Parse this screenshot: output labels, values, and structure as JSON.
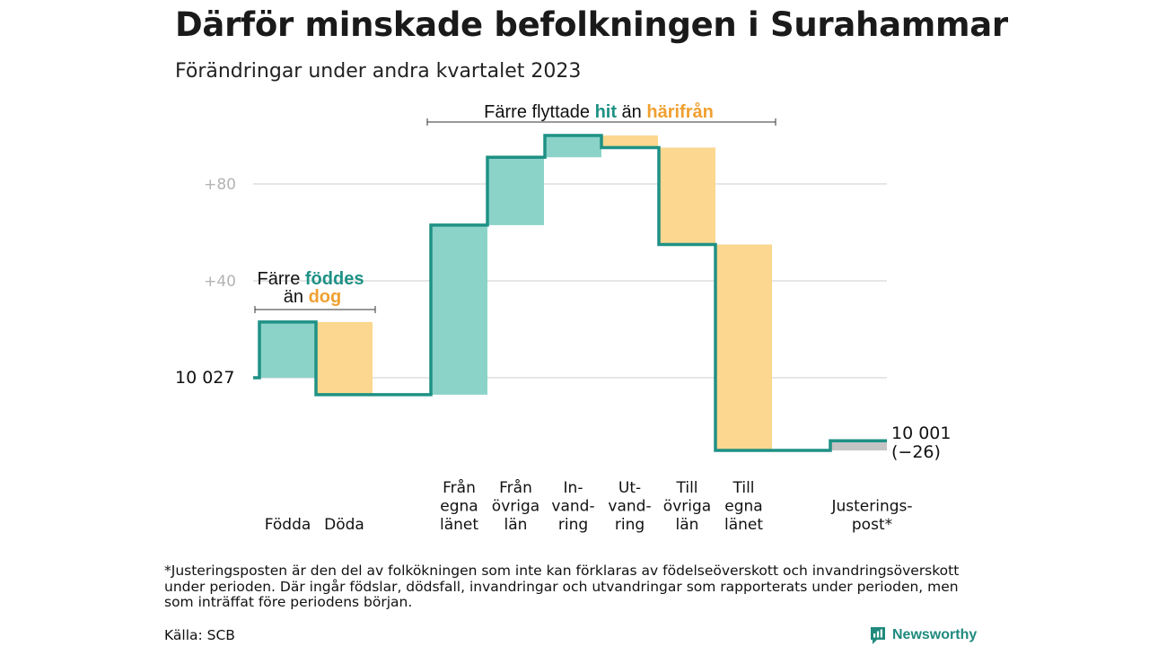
{
  "title": "Därför minskade befolkningen i Surahammar",
  "subtitle": "Förändringar under andra kvartalet 2023",
  "colors": {
    "inflow": "#8bd3c9",
    "outflow": "#fbd78f",
    "adjustment": "#c4c4c4",
    "line": "#1f9185",
    "grid": "#dddddd",
    "hit": "#1f9185",
    "harifran": "#f0a030"
  },
  "chart_data": {
    "type": "waterfall",
    "start_value": 10027,
    "start_label": "10 027",
    "end_label": "10 001",
    "end_change_label": "(−26)",
    "y_tick_labels": [
      "+80",
      "+40"
    ],
    "y_ticks": [
      80,
      40,
      0
    ],
    "y_unit": "change vs start",
    "grid": true,
    "categories": [
      {
        "label": [
          "Födda"
        ],
        "value": 23,
        "kind": "inflow"
      },
      {
        "label": [
          "Döda"
        ],
        "value": -30,
        "kind": "outflow"
      },
      {
        "label": [
          "Från",
          "egna",
          "länet"
        ],
        "value": 70,
        "kind": "inflow"
      },
      {
        "label": [
          "Från",
          "övriga",
          "län"
        ],
        "value": 28,
        "kind": "inflow"
      },
      {
        "label": [
          "In-",
          "vand-",
          "ring"
        ],
        "value": 9,
        "kind": "inflow"
      },
      {
        "label": [
          "Ut-",
          "vand-",
          "ring"
        ],
        "value": -5,
        "kind": "outflow"
      },
      {
        "label": [
          "Till",
          "övriga",
          "län"
        ],
        "value": -40,
        "kind": "outflow"
      },
      {
        "label": [
          "Till",
          "egna",
          "länet"
        ],
        "value": -85,
        "kind": "outflow"
      },
      {
        "label": [
          "Justerings-",
          "post*"
        ],
        "value": 4,
        "kind": "adjustment"
      }
    ],
    "annotations": [
      {
        "parts": [
          {
            "text": "Färre ",
            "color": "text"
          },
          {
            "text": "föddes",
            "color": "hit"
          }
        ]
      },
      {
        "parts": [
          {
            "text": "än ",
            "color": "text"
          },
          {
            "text": "dog",
            "color": "harifran"
          }
        ]
      },
      {
        "parts": [
          {
            "text": "Färre flyttade ",
            "color": "text"
          },
          {
            "text": "hit",
            "color": "hit"
          },
          {
            "text": " än ",
            "color": "text"
          },
          {
            "text": "härifrån",
            "color": "harifran"
          }
        ]
      }
    ]
  },
  "footnote": "*Justeringsposten är den del av folkökningen som inte kan förklaras av födelseöverskott och invandringsöverskott under perioden. Där ingår födslar, dödsfall, invandringar och utvandringar som rapporterats under perioden, men som inträffat före periodens början.",
  "source": "Källa: SCB",
  "brand": {
    "name": "Newsworthy",
    "logo": "newsworthy-logo-icon"
  }
}
